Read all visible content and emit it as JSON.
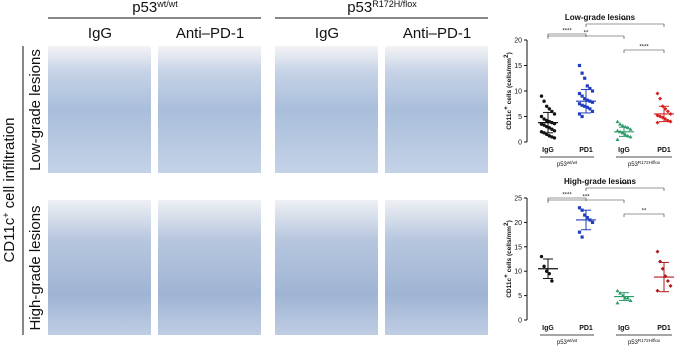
{
  "panel": {
    "genotypes": [
      {
        "base": "p53",
        "sup": "wt/wt"
      },
      {
        "base": "p53",
        "sup": "R172H/flox"
      }
    ],
    "treatments": [
      "IgG",
      "Anti–PD-1",
      "IgG",
      "Anti–PD-1"
    ],
    "side_label": {
      "base": "CD11c",
      "sup": "+",
      "rest": " cell infiltration"
    },
    "rows": [
      "Low-grade lesions",
      "High-grade lesions"
    ]
  },
  "chart_data": [
    {
      "type": "scatter",
      "title": "Low-grade lesions",
      "y_label": {
        "a": "CD11c",
        "b": "+",
        "c": " cells (cells/mm",
        "d": "2",
        "e": ")"
      },
      "categories": [
        "IgG",
        "PD1",
        "IgG",
        "PD1"
      ],
      "groups": [
        {
          "base": "p53",
          "sup": "wt/wt"
        },
        {
          "base": "p53",
          "sup": "R172H/flox"
        }
      ],
      "colors": [
        "#111111",
        "#1f3fbf",
        "#2e9a6a",
        "#d62020"
      ],
      "points": [
        [
          9,
          8,
          7,
          6.5,
          6,
          5.5,
          5,
          4.5,
          4.2,
          4,
          3.8,
          3.6,
          3.5,
          3.3,
          3,
          2.8,
          2.5,
          2.2,
          2,
          1.8,
          1.5,
          1.2,
          1,
          0.8
        ],
        [
          15,
          13.5,
          12.5,
          11,
          10.5,
          10,
          9.5,
          9,
          8.5,
          8.2,
          8,
          7.8,
          7.5,
          7.2,
          7,
          6.8,
          6.5,
          6,
          5.5,
          5
        ],
        [
          4,
          3.5,
          3.2,
          3,
          2.8,
          2.5,
          2.2,
          2,
          1.8,
          1.5,
          1.2,
          1,
          0.5
        ],
        [
          9.5,
          8.5,
          7,
          6.5,
          6,
          5.5,
          5.2,
          5,
          4.8,
          4.5,
          4.2,
          4,
          3.8
        ]
      ],
      "means": [
        3.8,
        8,
        2,
        5.5
      ],
      "sds": [
        2,
        2.3,
        0.9,
        1.5
      ],
      "ylim": [
        0,
        20
      ],
      "yticks": [
        0,
        5,
        10,
        15,
        20
      ],
      "brackets": [
        {
          "pair": [
            1,
            3
          ],
          "label": "***"
        },
        {
          "pair": [
            0,
            1
          ],
          "label": "****"
        },
        {
          "pair": [
            0,
            2
          ],
          "label": "**"
        },
        {
          "pair": [
            2,
            3
          ],
          "label": "****"
        }
      ]
    },
    {
      "type": "scatter",
      "title": "High-grade lesions",
      "y_label": {
        "a": "CD11c",
        "b": "+",
        "c": " cells (cells/mm",
        "d": "2",
        "e": ")"
      },
      "categories": [
        "IgG",
        "PD1",
        "IgG",
        "PD1"
      ],
      "groups": [
        {
          "base": "p53",
          "sup": "wt/wt"
        },
        {
          "base": "p53",
          "sup": "R172H/flox"
        }
      ],
      "colors": [
        "#111111",
        "#1f3fbf",
        "#2e9a6a",
        "#b01818"
      ],
      "points": [
        [
          13,
          11,
          10,
          9.5,
          8
        ],
        [
          23,
          22.5,
          21.5,
          21,
          20.5,
          20,
          18,
          17
        ],
        [
          6,
          5.5,
          5,
          4.5,
          4.5,
          4,
          3.5
        ],
        [
          14,
          12,
          10.5,
          9,
          8,
          7,
          6
        ]
      ],
      "means": [
        10.5,
        20.5,
        4.8,
        8.8
      ],
      "sds": [
        2,
        2,
        0.8,
        3
      ],
      "ylim": [
        0,
        25
      ],
      "yticks": [
        0,
        5,
        10,
        15,
        20,
        25
      ],
      "brackets": [
        {
          "pair": [
            1,
            3
          ],
          "label": "****"
        },
        {
          "pair": [
            0,
            1
          ],
          "label": "****"
        },
        {
          "pair": [
            0,
            2
          ],
          "label": "***"
        },
        {
          "pair": [
            2,
            3
          ],
          "label": "**"
        }
      ]
    }
  ]
}
